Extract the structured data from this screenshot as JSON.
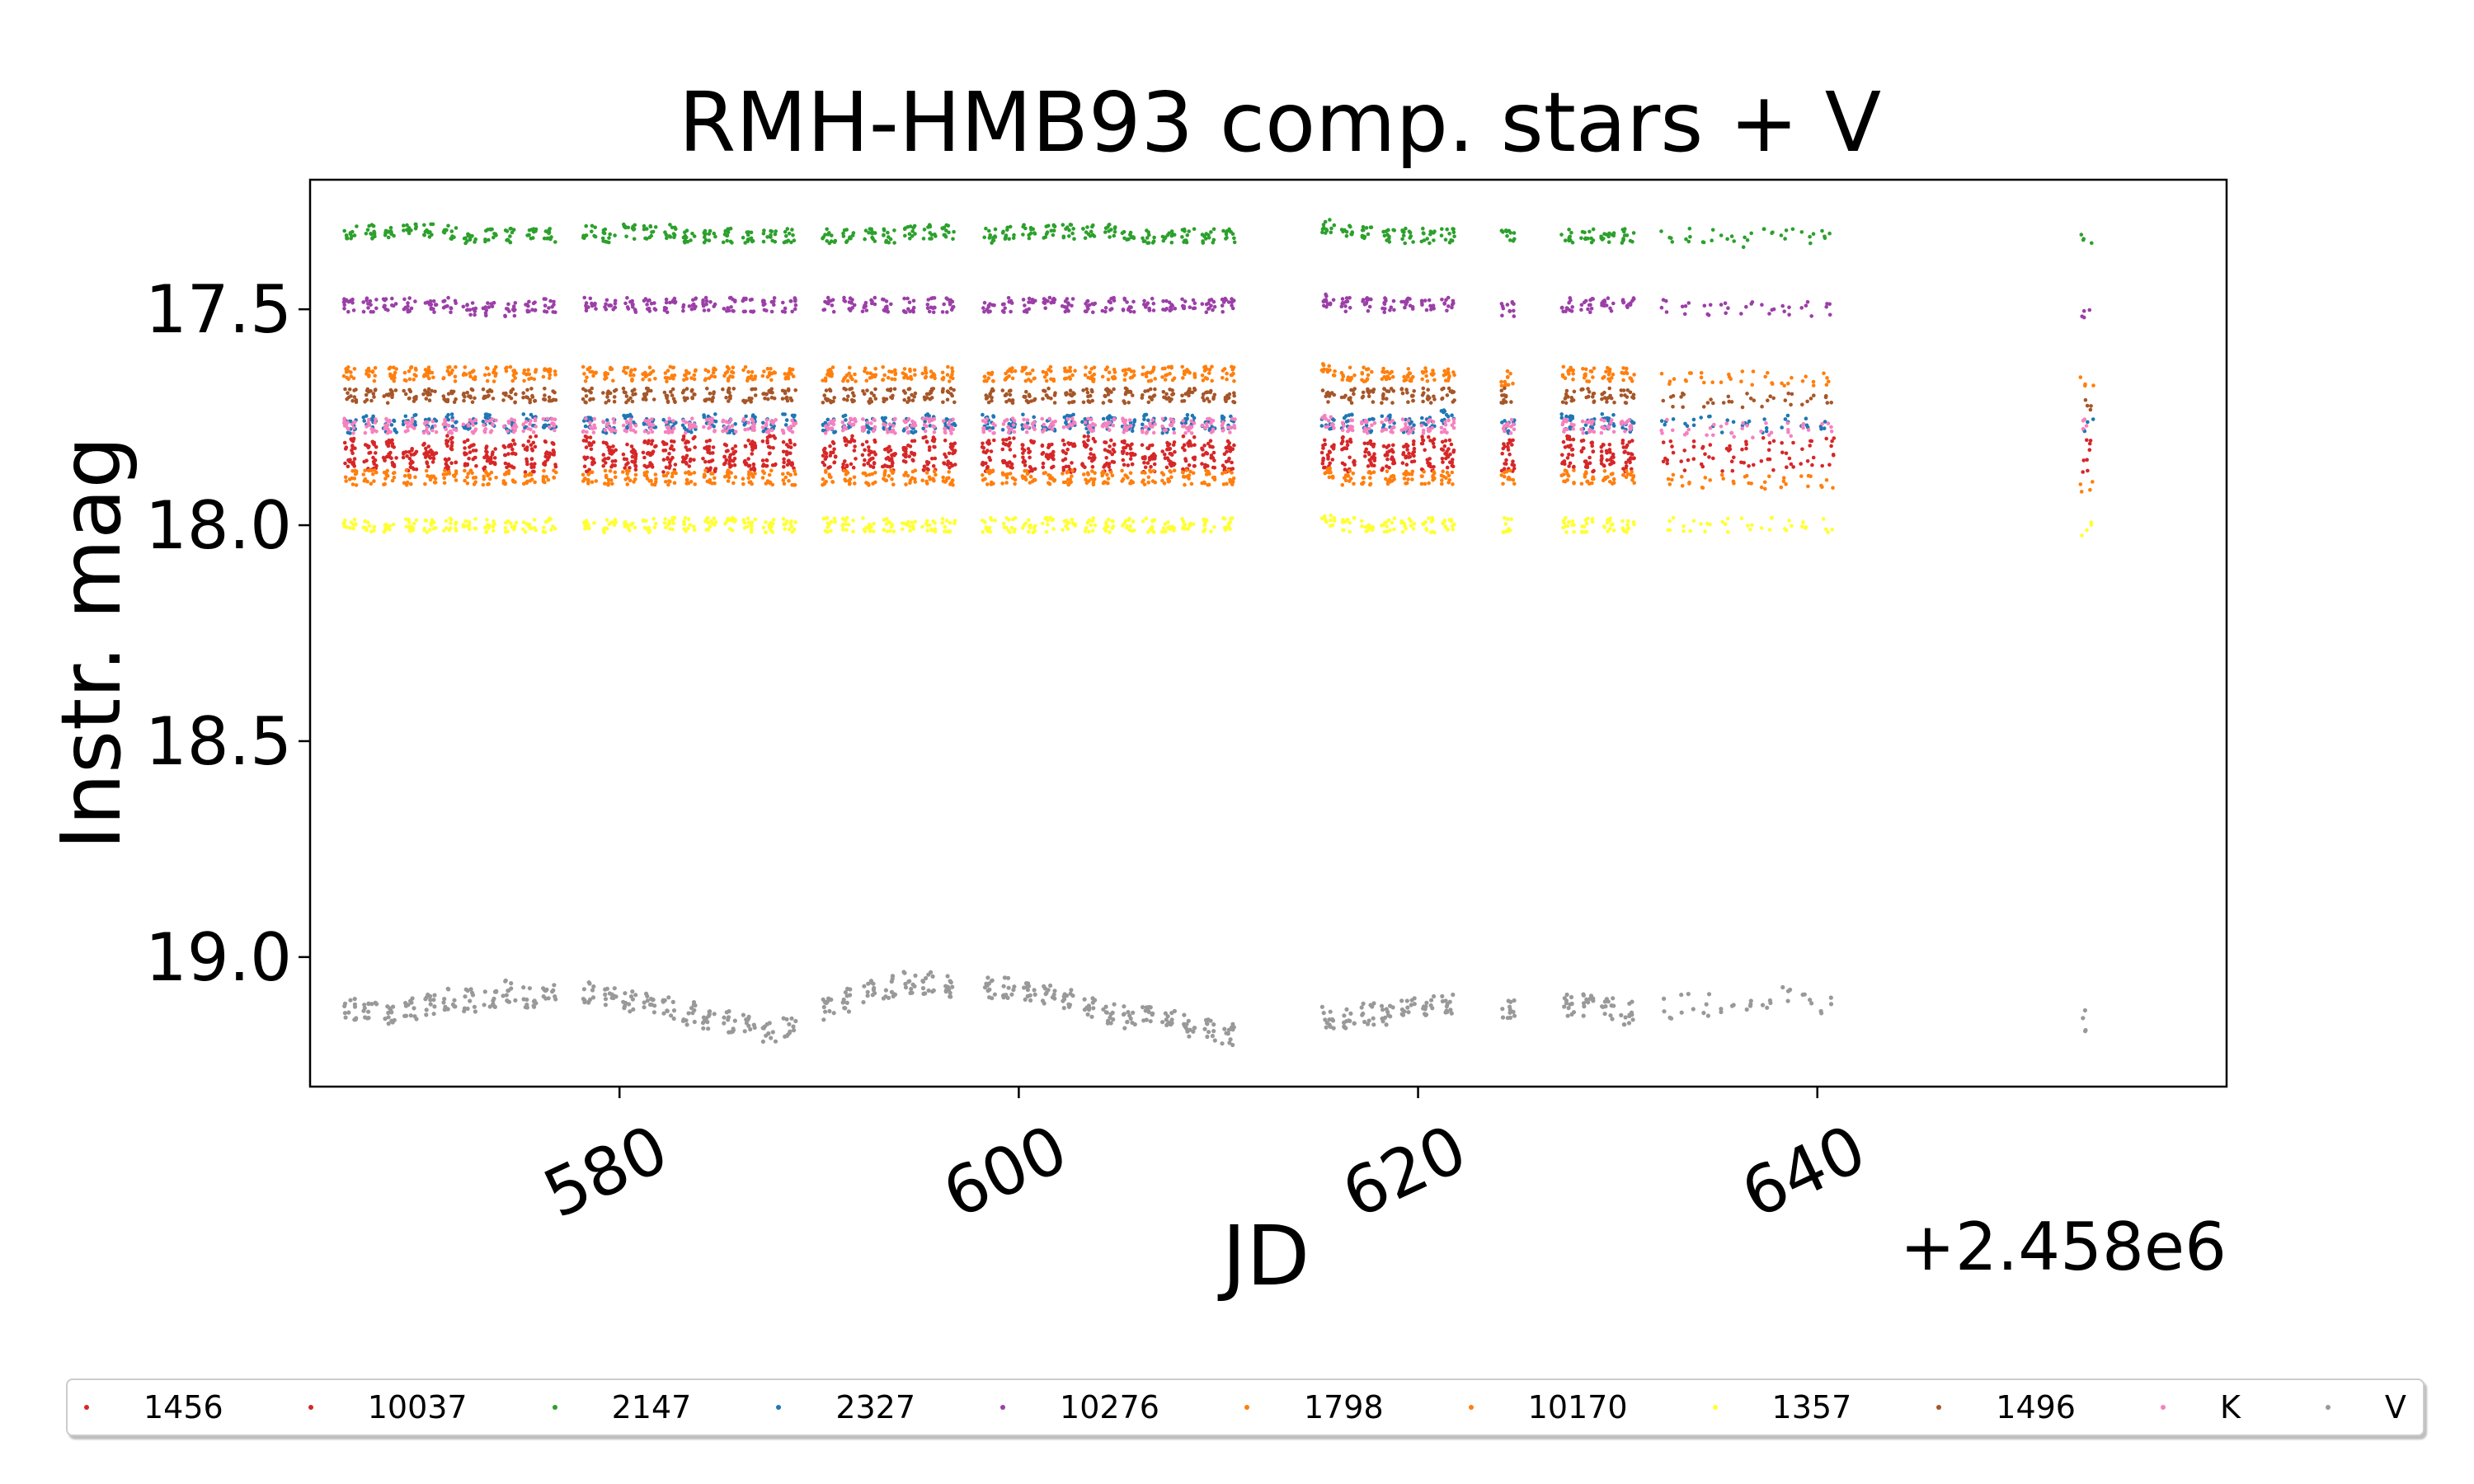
{
  "chart_data": {
    "type": "scatter",
    "title": "RMH-HMB93 comp. stars + V",
    "xlabel": "JD",
    "ylabel": "Instr. mag",
    "x_offset_label": "+2.458e6",
    "xlim": [
      564.5,
      660.5
    ],
    "ylim": [
      19.3,
      17.2
    ],
    "y_inverted": true,
    "xticks": [
      580,
      600,
      620,
      640
    ],
    "xtick_labels": [
      "580",
      "600",
      "620",
      "640"
    ],
    "yticks": [
      17.5,
      18.0,
      18.5,
      19.0
    ],
    "ytick_labels": [
      "17.5",
      "18.0",
      "18.5",
      "19.0"
    ],
    "grid": false,
    "legend_position": "bottom",
    "observation_nights": [
      566.5,
      567.5,
      568.5,
      569.5,
      570.5,
      571.5,
      572.5,
      573.5,
      574.5,
      575.5,
      576.5,
      578.5,
      579.5,
      580.5,
      581.5,
      582.5,
      583.5,
      584.5,
      585.5,
      586.5,
      587.5,
      588.5,
      590.5,
      591.5,
      592.5,
      593.5,
      594.5,
      595.5,
      596.5,
      598.5,
      599.5,
      600.5,
      601.5,
      602.5,
      603.5,
      604.5,
      605.5,
      606.5,
      607.5,
      608.5,
      609.5,
      610.5,
      615.5,
      616.5,
      617.5,
      618.5,
      619.5,
      620.5,
      621.5,
      624.5,
      627.5,
      628.5,
      629.5,
      630.5,
      632.5,
      633.5,
      634.5,
      635.5,
      636.5,
      637.5,
      638.5,
      639.5,
      640.5,
      653.5
    ],
    "series": [
      {
        "name": "1456",
        "color": "#d62728",
        "mag": [
          17.81,
          17.82,
          17.82,
          17.83,
          17.82,
          17.81,
          17.82,
          17.83,
          17.82,
          17.81,
          17.82,
          17.81,
          17.82,
          17.83,
          17.82,
          17.82,
          17.81,
          17.82,
          17.83,
          17.82,
          17.81,
          17.82,
          17.82,
          17.81,
          17.82,
          17.83,
          17.82,
          17.81,
          17.82,
          17.82,
          17.81,
          17.82,
          17.83,
          17.82,
          17.81,
          17.82,
          17.82,
          17.83,
          17.82,
          17.81,
          17.82,
          17.82,
          17.82,
          17.81,
          17.82,
          17.83,
          17.82,
          17.81,
          17.82,
          17.82,
          17.81,
          17.82,
          17.83,
          17.82,
          17.82,
          17.81,
          17.82,
          17.83,
          17.82,
          17.81,
          17.82,
          17.82,
          17.81,
          17.82
        ]
      },
      {
        "name": "10037",
        "color": "#d62728",
        "mag": [
          17.85,
          17.86,
          17.85,
          17.86,
          17.85,
          17.86,
          17.85,
          17.86,
          17.85,
          17.86,
          17.85,
          17.86,
          17.85,
          17.86,
          17.85,
          17.86,
          17.85,
          17.86,
          17.85,
          17.86,
          17.85,
          17.86,
          17.85,
          17.86,
          17.85,
          17.86,
          17.85,
          17.86,
          17.85,
          17.86,
          17.85,
          17.86,
          17.85,
          17.86,
          17.85,
          17.86,
          17.85,
          17.86,
          17.85,
          17.86,
          17.85,
          17.86,
          17.85,
          17.86,
          17.85,
          17.86,
          17.85,
          17.86,
          17.85,
          17.86,
          17.85,
          17.86,
          17.85,
          17.86,
          17.85,
          17.86,
          17.85,
          17.86,
          17.85,
          17.86,
          17.85,
          17.86,
          17.85,
          17.86
        ]
      },
      {
        "name": "2147",
        "color": "#2ca02c",
        "mag": [
          17.32,
          17.32,
          17.32,
          17.32,
          17.32,
          17.32,
          17.33,
          17.33,
          17.33,
          17.32,
          17.33,
          17.32,
          17.33,
          17.32,
          17.32,
          17.32,
          17.33,
          17.33,
          17.33,
          17.33,
          17.33,
          17.33,
          17.33,
          17.33,
          17.33,
          17.33,
          17.32,
          17.32,
          17.32,
          17.33,
          17.32,
          17.32,
          17.32,
          17.32,
          17.32,
          17.32,
          17.33,
          17.33,
          17.33,
          17.33,
          17.33,
          17.33,
          17.31,
          17.32,
          17.32,
          17.33,
          17.33,
          17.33,
          17.33,
          17.33,
          17.33,
          17.33,
          17.33,
          17.33,
          17.33,
          17.33,
          17.33,
          17.34,
          17.34,
          17.33,
          17.33,
          17.33,
          17.33,
          17.34
        ]
      },
      {
        "name": "2327",
        "color": "#1f77b4",
        "mag": [
          17.77,
          17.76,
          17.77,
          17.76,
          17.77,
          17.76,
          17.77,
          17.76,
          17.77,
          17.76,
          17.77,
          17.76,
          17.77,
          17.76,
          17.77,
          17.76,
          17.77,
          17.76,
          17.77,
          17.76,
          17.77,
          17.76,
          17.77,
          17.76,
          17.77,
          17.76,
          17.77,
          17.76,
          17.77,
          17.76,
          17.77,
          17.76,
          17.77,
          17.76,
          17.77,
          17.76,
          17.77,
          17.76,
          17.77,
          17.76,
          17.77,
          17.76,
          17.76,
          17.76,
          17.77,
          17.76,
          17.77,
          17.76,
          17.75,
          17.77,
          17.76,
          17.77,
          17.76,
          17.77,
          17.76,
          17.77,
          17.76,
          17.77,
          17.76,
          17.77,
          17.76,
          17.77,
          17.76,
          17.77
        ]
      },
      {
        "name": "10276",
        "color": "#9b3fa7",
        "mag": [
          17.49,
          17.49,
          17.49,
          17.49,
          17.49,
          17.49,
          17.5,
          17.5,
          17.5,
          17.49,
          17.49,
          17.49,
          17.49,
          17.49,
          17.49,
          17.49,
          17.49,
          17.49,
          17.49,
          17.49,
          17.49,
          17.49,
          17.49,
          17.49,
          17.49,
          17.49,
          17.49,
          17.49,
          17.49,
          17.49,
          17.49,
          17.49,
          17.49,
          17.49,
          17.49,
          17.49,
          17.49,
          17.49,
          17.49,
          17.49,
          17.49,
          17.49,
          17.48,
          17.49,
          17.49,
          17.49,
          17.49,
          17.49,
          17.49,
          17.5,
          17.49,
          17.49,
          17.49,
          17.49,
          17.49,
          17.5,
          17.5,
          17.5,
          17.5,
          17.5,
          17.5,
          17.5,
          17.5,
          17.51
        ]
      },
      {
        "name": "1798",
        "color": "#ff7f0e",
        "mag": [
          17.65,
          17.65,
          17.65,
          17.65,
          17.65,
          17.65,
          17.65,
          17.65,
          17.65,
          17.65,
          17.65,
          17.65,
          17.65,
          17.65,
          17.65,
          17.65,
          17.65,
          17.65,
          17.65,
          17.65,
          17.65,
          17.65,
          17.65,
          17.65,
          17.65,
          17.65,
          17.65,
          17.65,
          17.65,
          17.65,
          17.65,
          17.65,
          17.65,
          17.65,
          17.65,
          17.65,
          17.65,
          17.65,
          17.65,
          17.65,
          17.65,
          17.65,
          17.64,
          17.65,
          17.65,
          17.65,
          17.65,
          17.65,
          17.65,
          17.66,
          17.65,
          17.65,
          17.65,
          17.65,
          17.66,
          17.66,
          17.66,
          17.66,
          17.66,
          17.66,
          17.66,
          17.66,
          17.66,
          17.67
        ]
      },
      {
        "name": "10170",
        "color": "#ff7f0e",
        "mag": [
          17.89,
          17.89,
          17.89,
          17.89,
          17.89,
          17.89,
          17.89,
          17.89,
          17.89,
          17.89,
          17.89,
          17.89,
          17.89,
          17.89,
          17.89,
          17.89,
          17.89,
          17.89,
          17.89,
          17.89,
          17.89,
          17.89,
          17.89,
          17.89,
          17.89,
          17.89,
          17.89,
          17.89,
          17.89,
          17.89,
          17.89,
          17.89,
          17.89,
          17.89,
          17.89,
          17.89,
          17.89,
          17.89,
          17.89,
          17.89,
          17.89,
          17.89,
          17.88,
          17.89,
          17.89,
          17.89,
          17.89,
          17.89,
          17.89,
          17.89,
          17.89,
          17.89,
          17.89,
          17.89,
          17.9,
          17.9,
          17.9,
          17.9,
          17.9,
          17.9,
          17.9,
          17.9,
          17.9,
          17.91
        ]
      },
      {
        "name": "1357",
        "color": "#ffff33",
        "mag": [
          18.0,
          18.0,
          18.0,
          18.0,
          18.0,
          18.0,
          18.0,
          18.0,
          18.0,
          18.0,
          18.0,
          18.0,
          18.0,
          18.0,
          18.0,
          18.0,
          18.0,
          18.0,
          18.0,
          18.0,
          18.0,
          18.0,
          18.0,
          18.0,
          18.0,
          18.0,
          18.0,
          18.0,
          18.0,
          18.0,
          18.0,
          18.0,
          18.0,
          18.0,
          18.0,
          18.0,
          18.0,
          18.0,
          18.0,
          18.0,
          18.0,
          18.0,
          17.99,
          18.0,
          18.0,
          18.0,
          18.0,
          18.0,
          18.0,
          18.0,
          18.0,
          18.0,
          18.0,
          18.0,
          18.0,
          18.0,
          18.0,
          18.0,
          18.0,
          18.0,
          18.0,
          18.0,
          18.0,
          18.01
        ]
      },
      {
        "name": "1496",
        "color": "#a65628",
        "mag": [
          17.7,
          17.7,
          17.7,
          17.7,
          17.7,
          17.7,
          17.7,
          17.7,
          17.7,
          17.7,
          17.7,
          17.7,
          17.7,
          17.7,
          17.7,
          17.7,
          17.7,
          17.7,
          17.7,
          17.7,
          17.7,
          17.7,
          17.7,
          17.7,
          17.7,
          17.7,
          17.7,
          17.7,
          17.7,
          17.7,
          17.7,
          17.7,
          17.7,
          17.7,
          17.7,
          17.7,
          17.7,
          17.7,
          17.7,
          17.7,
          17.7,
          17.7,
          17.7,
          17.7,
          17.7,
          17.7,
          17.7,
          17.7,
          17.7,
          17.7,
          17.7,
          17.7,
          17.7,
          17.7,
          17.71,
          17.71,
          17.71,
          17.71,
          17.71,
          17.71,
          17.71,
          17.71,
          17.71,
          17.72
        ]
      },
      {
        "name": "K",
        "color": "#f781bf",
        "mag": [
          17.77,
          17.77,
          17.77,
          17.77,
          17.77,
          17.77,
          17.77,
          17.77,
          17.77,
          17.77,
          17.77,
          17.77,
          17.77,
          17.77,
          17.77,
          17.77,
          17.77,
          17.77,
          17.77,
          17.77,
          17.77,
          17.77,
          17.77,
          17.77,
          17.77,
          17.77,
          17.77,
          17.77,
          17.77,
          17.77,
          17.77,
          17.77,
          17.77,
          17.77,
          17.77,
          17.77,
          17.77,
          17.77,
          17.77,
          17.77,
          17.77,
          17.77,
          17.76,
          17.77,
          17.77,
          17.77,
          17.77,
          17.77,
          17.77,
          17.77,
          17.77,
          17.77,
          17.77,
          17.77,
          17.77,
          17.78,
          17.78,
          17.78,
          17.78,
          17.78,
          17.78,
          17.78,
          17.78,
          17.77
        ]
      },
      {
        "name": "V",
        "color": "#999999",
        "mag": [
          19.12,
          19.13,
          19.13,
          19.12,
          19.11,
          19.1,
          19.1,
          19.09,
          19.08,
          19.09,
          19.08,
          19.08,
          19.09,
          19.1,
          19.11,
          19.12,
          19.13,
          19.14,
          19.15,
          19.16,
          19.17,
          19.16,
          19.12,
          19.1,
          19.08,
          19.07,
          19.06,
          19.06,
          19.07,
          19.07,
          19.07,
          19.08,
          19.09,
          19.1,
          19.12,
          19.13,
          19.14,
          19.14,
          19.15,
          19.16,
          19.17,
          19.18,
          19.14,
          19.14,
          19.13,
          19.13,
          19.12,
          19.11,
          19.11,
          19.12,
          19.11,
          19.11,
          19.12,
          19.13,
          19.12,
          19.11,
          19.11,
          19.11,
          19.12,
          19.11,
          19.09,
          19.11,
          19.12,
          19.15
        ]
      }
    ]
  }
}
